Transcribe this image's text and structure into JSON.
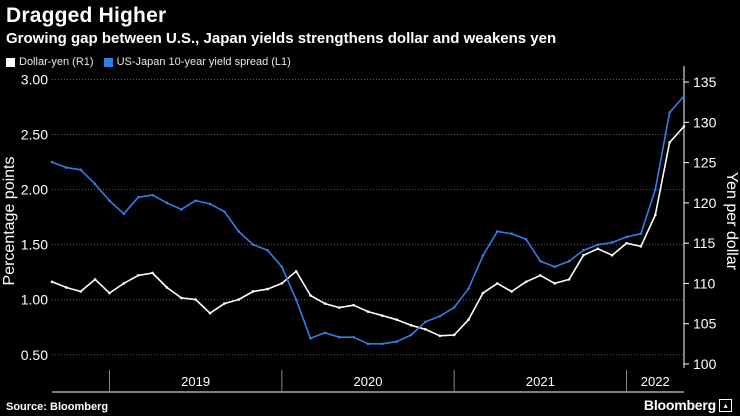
{
  "header": {
    "title": "Dragged Higher",
    "subtitle": "Growing gap between U.S., Japan yields strengthens dollar and weakens yen"
  },
  "footer": {
    "source": "Source: Bloomberg",
    "brand": "Bloomberg"
  },
  "colors": {
    "background": "#000000",
    "dollar_yen": "#ffffff",
    "yield_spread": "#2f7fe6",
    "grid": "#5a5a5a",
    "text": "#ffffff"
  },
  "chart_data": {
    "type": "line",
    "title": "Dragged Higher",
    "subtitle": "Growing gap between U.S., Japan yields strengthens dollar and weakens yen",
    "x_ticks": [
      "2019",
      "2020",
      "2021",
      "2022"
    ],
    "xlim": [
      "2018-09",
      "2022-05"
    ],
    "left_axis": {
      "label": "Percentage points",
      "ticks": [
        "0.50",
        "1.00",
        "1.50",
        "2.00",
        "2.50",
        "3.00"
      ],
      "ylim": [
        0.38,
        3.05
      ]
    },
    "right_axis": {
      "label": "Yen per dollar",
      "ticks": [
        "100",
        "105",
        "110",
        "115",
        "120",
        "125",
        "130",
        "135"
      ],
      "ylim": [
        99.5,
        136
      ]
    },
    "grid": true,
    "legend_position": "top-left",
    "series": [
      {
        "name": "Dollar-yen (R1)",
        "axis": "right",
        "color": "#ffffff",
        "x": [
          "2018-09",
          "2018-10",
          "2018-11",
          "2018-12",
          "2019-01",
          "2019-02",
          "2019-03",
          "2019-04",
          "2019-05",
          "2019-06",
          "2019-07",
          "2019-08",
          "2019-09",
          "2019-10",
          "2019-11",
          "2019-12",
          "2020-01",
          "2020-02",
          "2020-03",
          "2020-04",
          "2020-05",
          "2020-06",
          "2020-07",
          "2020-08",
          "2020-09",
          "2020-10",
          "2020-11",
          "2020-12",
          "2021-01",
          "2021-02",
          "2021-03",
          "2021-04",
          "2021-05",
          "2021-06",
          "2021-07",
          "2021-08",
          "2021-09",
          "2021-10",
          "2021-11",
          "2021-12",
          "2022-01",
          "2022-02",
          "2022-03",
          "2022-04",
          "2022-05"
        ],
        "values": [
          110.2,
          109.5,
          109.0,
          110.5,
          108.8,
          110.0,
          111.0,
          111.3,
          109.5,
          108.2,
          108.0,
          106.3,
          107.5,
          108.0,
          109.0,
          109.3,
          110.0,
          111.5,
          108.5,
          107.5,
          107.0,
          107.3,
          106.5,
          106.0,
          105.5,
          104.8,
          104.3,
          103.5,
          103.6,
          105.5,
          108.8,
          110.0,
          109.0,
          110.2,
          111.0,
          110.0,
          110.5,
          113.5,
          114.3,
          113.5,
          115.0,
          114.6,
          118.5,
          127.5,
          129.5
        ]
      },
      {
        "name": "US-Japan 10-year yield spread (L1)",
        "axis": "left",
        "color": "#2f7fe6",
        "x": [
          "2018-09",
          "2018-10",
          "2018-11",
          "2018-12",
          "2019-01",
          "2019-02",
          "2019-03",
          "2019-04",
          "2019-05",
          "2019-06",
          "2019-07",
          "2019-08",
          "2019-09",
          "2019-10",
          "2019-11",
          "2019-12",
          "2020-01",
          "2020-02",
          "2020-03",
          "2020-04",
          "2020-05",
          "2020-06",
          "2020-07",
          "2020-08",
          "2020-09",
          "2020-10",
          "2020-11",
          "2020-12",
          "2021-01",
          "2021-02",
          "2021-03",
          "2021-04",
          "2021-05",
          "2021-06",
          "2021-07",
          "2021-08",
          "2021-09",
          "2021-10",
          "2021-11",
          "2021-12",
          "2022-01",
          "2022-02",
          "2022-03",
          "2022-04",
          "2022-05"
        ],
        "values": [
          2.25,
          2.2,
          2.18,
          2.05,
          1.9,
          1.78,
          1.93,
          1.95,
          1.88,
          1.82,
          1.9,
          1.87,
          1.8,
          1.62,
          1.5,
          1.45,
          1.3,
          1.0,
          0.65,
          0.7,
          0.66,
          0.66,
          0.6,
          0.6,
          0.62,
          0.68,
          0.8,
          0.85,
          0.93,
          1.1,
          1.4,
          1.62,
          1.6,
          1.55,
          1.35,
          1.3,
          1.35,
          1.45,
          1.5,
          1.52,
          1.57,
          1.6,
          2.0,
          2.7,
          2.85
        ]
      }
    ]
  }
}
